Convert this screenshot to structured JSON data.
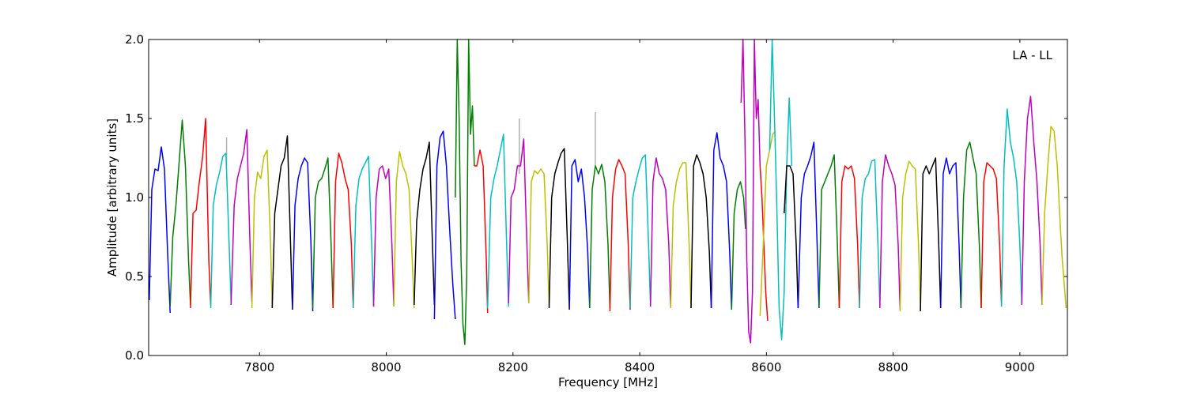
{
  "chart_data": {
    "type": "line",
    "title": "",
    "xlabel": "Frequency [MHz]",
    "ylabel": "Amplitude [arbitrary units]",
    "xlim": [
      7625,
      9075
    ],
    "ylim": [
      0.0,
      2.0
    ],
    "x_ticks": [
      7800,
      8000,
      8200,
      8400,
      8600,
      8800,
      9000
    ],
    "x_tick_labels": [
      "7800",
      "8000",
      "8200",
      "8400",
      "8600",
      "8800",
      "9000"
    ],
    "y_ticks": [
      0.0,
      0.5,
      1.0,
      1.5,
      2.0
    ],
    "y_tick_labels": [
      "0.0",
      "0.5",
      "1.0",
      "1.5",
      "2.0"
    ],
    "grid": false,
    "legend": "none",
    "annotation": {
      "text": "LA - LL",
      "position": "top-right"
    },
    "colors": [
      "#0000ff",
      "#007f00",
      "#ff0000",
      "#00bfbf",
      "#bf00bf",
      "#bfbf00",
      "#000000"
    ],
    "series": [
      {
        "color": "#0000ff",
        "x": [
          7626,
          7630,
          7635,
          7640,
          7645,
          7650,
          7655,
          7659
        ],
        "y": [
          0.35,
          1.05,
          1.18,
          1.17,
          1.32,
          1.18,
          0.65,
          0.27
        ]
      },
      {
        "color": "#007f00",
        "x": [
          7659,
          7663,
          7668,
          7673,
          7678,
          7683,
          7688,
          7691
        ],
        "y": [
          0.31,
          0.75,
          0.95,
          1.22,
          1.49,
          1.2,
          0.6,
          0.32
        ]
      },
      {
        "color": "#ff0000",
        "x": [
          7691,
          7695,
          7700,
          7705,
          7710,
          7715,
          7720,
          7723
        ],
        "y": [
          0.3,
          0.9,
          0.92,
          1.1,
          1.25,
          1.5,
          0.6,
          0.32
        ]
      },
      {
        "color": "#00bfbf",
        "x": [
          7723,
          7727,
          7732,
          7737,
          7742,
          7747,
          7752,
          7755
        ],
        "y": [
          0.3,
          0.95,
          1.08,
          1.16,
          1.26,
          1.28,
          0.7,
          0.34
        ]
      },
      {
        "color": "#bf00bf",
        "x": [
          7755,
          7760,
          7765,
          7770,
          7775,
          7780,
          7785,
          7788
        ],
        "y": [
          0.32,
          0.95,
          1.12,
          1.2,
          1.28,
          1.43,
          0.7,
          0.34
        ]
      },
      {
        "color": "#bfbf00",
        "x": [
          7788,
          7792,
          7797,
          7802,
          7807,
          7812,
          7817,
          7820
        ],
        "y": [
          0.3,
          1.0,
          1.16,
          1.12,
          1.26,
          1.3,
          0.75,
          0.3
        ]
      },
      {
        "color": "#000000",
        "x": [
          7820,
          7824,
          7829,
          7834,
          7839,
          7844,
          7849,
          7852
        ],
        "y": [
          0.3,
          0.9,
          1.05,
          1.2,
          1.25,
          1.39,
          0.7,
          0.29
        ]
      },
      {
        "color": "#0000ff",
        "x": [
          7852,
          7856,
          7861,
          7866,
          7871,
          7876,
          7881,
          7884
        ],
        "y": [
          0.29,
          0.95,
          1.12,
          1.2,
          1.25,
          1.22,
          0.72,
          0.28
        ]
      },
      {
        "color": "#007f00",
        "x": [
          7884,
          7888,
          7893,
          7898,
          7903,
          7908,
          7913,
          7916
        ],
        "y": [
          0.3,
          1.0,
          1.1,
          1.12,
          1.18,
          1.25,
          0.7,
          0.3
        ]
      },
      {
        "color": "#ff0000",
        "x": [
          7916,
          7920,
          7925,
          7930,
          7935,
          7940,
          7945,
          7948
        ],
        "y": [
          0.3,
          1.1,
          1.28,
          1.22,
          1.12,
          1.05,
          0.7,
          0.3
        ]
      },
      {
        "color": "#00bfbf",
        "x": [
          7948,
          7952,
          7957,
          7962,
          7967,
          7972,
          7977,
          7980
        ],
        "y": [
          0.3,
          0.95,
          1.12,
          1.18,
          1.22,
          1.26,
          0.7,
          0.31
        ]
      },
      {
        "color": "#bf00bf",
        "x": [
          7980,
          7984,
          7989,
          7994,
          7999,
          8004,
          8009,
          8012
        ],
        "y": [
          0.31,
          1.0,
          1.18,
          1.2,
          1.12,
          1.18,
          0.7,
          0.31
        ]
      },
      {
        "color": "#bfbf00",
        "x": [
          8012,
          8016,
          8021,
          8026,
          8031,
          8036,
          8041,
          8044
        ],
        "y": [
          0.31,
          1.1,
          1.29,
          1.2,
          1.15,
          1.05,
          0.6,
          0.3
        ]
      },
      {
        "color": "#000000",
        "x": [
          8044,
          8048,
          8053,
          8058,
          8063,
          8068,
          8073,
          8076
        ],
        "y": [
          0.32,
          0.85,
          1.05,
          1.18,
          1.25,
          1.35,
          0.7,
          0.32
        ]
      },
      {
        "color": "#0000ff",
        "x": [
          8076,
          8080,
          8085,
          8090,
          8095,
          8100,
          8105,
          8109
        ],
        "y": [
          0.23,
          1.2,
          1.38,
          1.42,
          1.2,
          0.8,
          0.45,
          0.23
        ]
      },
      {
        "color": "#007f00",
        "x": [
          8109,
          8112,
          8115,
          8118,
          8121,
          8124,
          8127,
          8130,
          8133,
          8136,
          8139
        ],
        "y": [
          1.0,
          2.0,
          1.5,
          0.6,
          0.2,
          0.07,
          0.5,
          2.0,
          1.4,
          1.58,
          1.2
        ]
      },
      {
        "color": "#ff0000",
        "x": [
          8139,
          8143,
          8148,
          8153,
          8158,
          8160
        ],
        "y": [
          1.2,
          1.2,
          1.3,
          1.2,
          0.6,
          0.27
        ]
      },
      {
        "color": "#00bfbf",
        "x": [
          8160,
          8165,
          8170,
          8175,
          8180,
          8185,
          8190,
          8193
        ],
        "y": [
          0.3,
          1.0,
          1.12,
          1.2,
          1.3,
          1.4,
          0.7,
          0.31
        ]
      },
      {
        "color": "#bf00bf",
        "x": [
          8193,
          8197,
          8202,
          8207,
          8212,
          8217,
          8222,
          8225
        ],
        "y": [
          0.33,
          1.0,
          1.05,
          1.2,
          1.2,
          1.37,
          0.7,
          0.33
        ]
      },
      {
        "color": "#bfbf00",
        "x": [
          8225,
          8229,
          8234,
          8239,
          8244,
          8249,
          8254,
          8257
        ],
        "y": [
          0.33,
          1.1,
          1.17,
          1.15,
          1.18,
          1.15,
          0.7,
          0.3
        ]
      },
      {
        "color": "#000000",
        "x": [
          8257,
          8261,
          8266,
          8271,
          8276,
          8281,
          8286,
          8289
        ],
        "y": [
          0.3,
          1.0,
          1.15,
          1.22,
          1.28,
          1.31,
          0.7,
          0.29
        ]
      },
      {
        "color": "#0000ff",
        "x": [
          8289,
          8293,
          8298,
          8303,
          8308,
          8313,
          8318,
          8321
        ],
        "y": [
          0.29,
          1.2,
          1.24,
          1.1,
          1.18,
          1.0,
          0.65,
          0.3
        ]
      },
      {
        "color": "#007f00",
        "x": [
          8321,
          8325,
          8330,
          8335,
          8340,
          8345,
          8350,
          8353
        ],
        "y": [
          0.3,
          1.05,
          1.2,
          1.15,
          1.21,
          1.1,
          0.7,
          0.3
        ]
      },
      {
        "color": "#ff0000",
        "x": [
          8353,
          8357,
          8362,
          8367,
          8372,
          8377,
          8382,
          8385
        ],
        "y": [
          0.28,
          1.0,
          1.18,
          1.24,
          1.2,
          1.15,
          0.7,
          0.29
        ]
      },
      {
        "color": "#00bfbf",
        "x": [
          8385,
          8389,
          8394,
          8399,
          8404,
          8409,
          8414,
          8417
        ],
        "y": [
          0.3,
          1.0,
          1.1,
          1.18,
          1.25,
          1.27,
          0.7,
          0.31
        ]
      },
      {
        "color": "#bf00bf",
        "x": [
          8417,
          8421,
          8426,
          8431,
          8436,
          8441,
          8446,
          8449
        ],
        "y": [
          0.31,
          1.1,
          1.25,
          1.15,
          1.12,
          1.05,
          0.7,
          0.3
        ]
      },
      {
        "color": "#bfbf00",
        "x": [
          8449,
          8453,
          8458,
          8463,
          8468,
          8473,
          8478,
          8481
        ],
        "y": [
          0.3,
          0.95,
          1.1,
          1.18,
          1.22,
          1.22,
          0.7,
          0.3
        ]
      },
      {
        "color": "#000000",
        "x": [
          8481,
          8485,
          8490,
          8495,
          8500,
          8505,
          8510,
          8513
        ],
        "y": [
          0.3,
          1.2,
          1.27,
          1.22,
          1.15,
          1.0,
          0.65,
          0.3
        ]
      },
      {
        "color": "#0000ff",
        "x": [
          8513,
          8517,
          8522,
          8527,
          8532,
          8537,
          8542,
          8545
        ],
        "y": [
          0.3,
          1.3,
          1.41,
          1.25,
          1.2,
          1.1,
          0.65,
          0.29
        ]
      },
      {
        "color": "#007f00",
        "x": [
          8545,
          8549,
          8554,
          8559,
          8564,
          8567
        ],
        "y": [
          0.29,
          0.9,
          1.05,
          1.1,
          1.0,
          0.8
        ]
      },
      {
        "color": "#bf00bf",
        "x": [
          8560,
          8563,
          8566,
          8569,
          8572,
          8575,
          8578,
          8581,
          8584,
          8587,
          8590
        ],
        "y": [
          1.6,
          2.0,
          1.4,
          0.6,
          0.15,
          0.08,
          0.4,
          2.0,
          1.5,
          1.62,
          1.2
        ]
      },
      {
        "color": "#ff0000",
        "x": [
          8590,
          8593,
          8596,
          8599,
          8602
        ],
        "y": [
          1.2,
          1.0,
          0.7,
          0.4,
          0.22
        ]
      },
      {
        "color": "#bfbf00",
        "x": [
          8590,
          8595,
          8600,
          8605,
          8610,
          8614
        ],
        "y": [
          0.25,
          0.7,
          1.2,
          1.3,
          1.4,
          1.42
        ]
      },
      {
        "color": "#00bfbf",
        "x": [
          8605,
          8609,
          8612,
          8616,
          8620,
          8624,
          8628,
          8632,
          8636,
          8640
        ],
        "y": [
          1.3,
          2.0,
          1.6,
          1.0,
          0.3,
          0.1,
          0.4,
          1.2,
          1.63,
          1.2
        ]
      },
      {
        "color": "#000000",
        "x": [
          8628,
          8632,
          8637,
          8642,
          8647,
          8650
        ],
        "y": [
          0.9,
          1.2,
          1.2,
          1.15,
          0.7,
          0.3
        ]
      },
      {
        "color": "#0000ff",
        "x": [
          8650,
          8655,
          8660,
          8665,
          8670,
          8675,
          8680,
          8683
        ],
        "y": [
          0.3,
          1.0,
          1.15,
          1.2,
          1.26,
          1.35,
          0.7,
          0.3
        ]
      },
      {
        "color": "#007f00",
        "x": [
          8683,
          8687,
          8692,
          8697,
          8702,
          8707,
          8712,
          8715
        ],
        "y": [
          0.3,
          1.05,
          1.1,
          1.15,
          1.2,
          1.27,
          0.7,
          0.3
        ]
      },
      {
        "color": "#ff0000",
        "x": [
          8715,
          8719,
          8724,
          8729,
          8734,
          8739,
          8744,
          8747
        ],
        "y": [
          0.3,
          1.1,
          1.2,
          1.18,
          1.2,
          1.12,
          0.7,
          0.3
        ]
      },
      {
        "color": "#00bfbf",
        "x": [
          8747,
          8751,
          8756,
          8761,
          8766,
          8771,
          8776,
          8779
        ],
        "y": [
          0.3,
          1.0,
          1.12,
          1.15,
          1.23,
          1.24,
          0.7,
          0.31
        ]
      },
      {
        "color": "#bf00bf",
        "x": [
          8779,
          8783,
          8788,
          8793,
          8798,
          8803,
          8808,
          8811
        ],
        "y": [
          0.3,
          1.1,
          1.27,
          1.2,
          1.15,
          1.08,
          0.7,
          0.29
        ]
      },
      {
        "color": "#bfbf00",
        "x": [
          8811,
          8815,
          8820,
          8825,
          8830,
          8835,
          8840,
          8843
        ],
        "y": [
          0.28,
          1.0,
          1.15,
          1.23,
          1.2,
          1.18,
          0.7,
          0.29
        ]
      },
      {
        "color": "#000000",
        "x": [
          8843,
          8847,
          8852,
          8857,
          8862,
          8867,
          8872,
          8875
        ],
        "y": [
          0.28,
          1.15,
          1.2,
          1.15,
          1.2,
          1.25,
          0.7,
          0.3
        ]
      },
      {
        "color": "#0000ff",
        "x": [
          8875,
          8879,
          8884,
          8889,
          8894,
          8899,
          8904,
          8907
        ],
        "y": [
          0.3,
          1.15,
          1.25,
          1.15,
          1.2,
          1.22,
          0.7,
          0.3
        ]
      },
      {
        "color": "#007f00",
        "x": [
          8907,
          8911,
          8916,
          8921,
          8926,
          8931,
          8936,
          8939
        ],
        "y": [
          0.3,
          1.0,
          1.3,
          1.35,
          1.25,
          1.15,
          0.7,
          0.3
        ]
      },
      {
        "color": "#ff0000",
        "x": [
          8939,
          8943,
          8948,
          8953,
          8958,
          8963,
          8968,
          8971
        ],
        "y": [
          0.3,
          1.1,
          1.22,
          1.2,
          1.18,
          1.12,
          0.7,
          0.31
        ]
      },
      {
        "color": "#00bfbf",
        "x": [
          8971,
          8975,
          8980,
          8985,
          8990,
          8995,
          9000,
          9003
        ],
        "y": [
          0.31,
          1.2,
          1.56,
          1.35,
          1.25,
          1.1,
          0.7,
          0.33
        ]
      },
      {
        "color": "#bf00bf",
        "x": [
          9003,
          9007,
          9012,
          9017,
          9022,
          9027,
          9032,
          9035
        ],
        "y": [
          0.32,
          1.1,
          1.5,
          1.64,
          1.35,
          1.1,
          0.7,
          0.32
        ]
      },
      {
        "color": "#bfbf00",
        "x": [
          9035,
          9039,
          9044,
          9049,
          9054,
          9059,
          9064,
          9067,
          9073
        ],
        "y": [
          0.32,
          0.9,
          1.2,
          1.45,
          1.42,
          1.2,
          0.8,
          0.6,
          0.3
        ]
      }
    ],
    "markers": [
      {
        "color": "#b0b0b0",
        "x": 7748,
        "y0": 1.2,
        "y1": 1.38
      },
      {
        "color": "#b0b0b0",
        "x": 8210,
        "y0": 1.15,
        "y1": 1.5
      },
      {
        "color": "#b0b0b0",
        "x": 8330,
        "y0": 1.2,
        "y1": 1.54
      }
    ]
  }
}
